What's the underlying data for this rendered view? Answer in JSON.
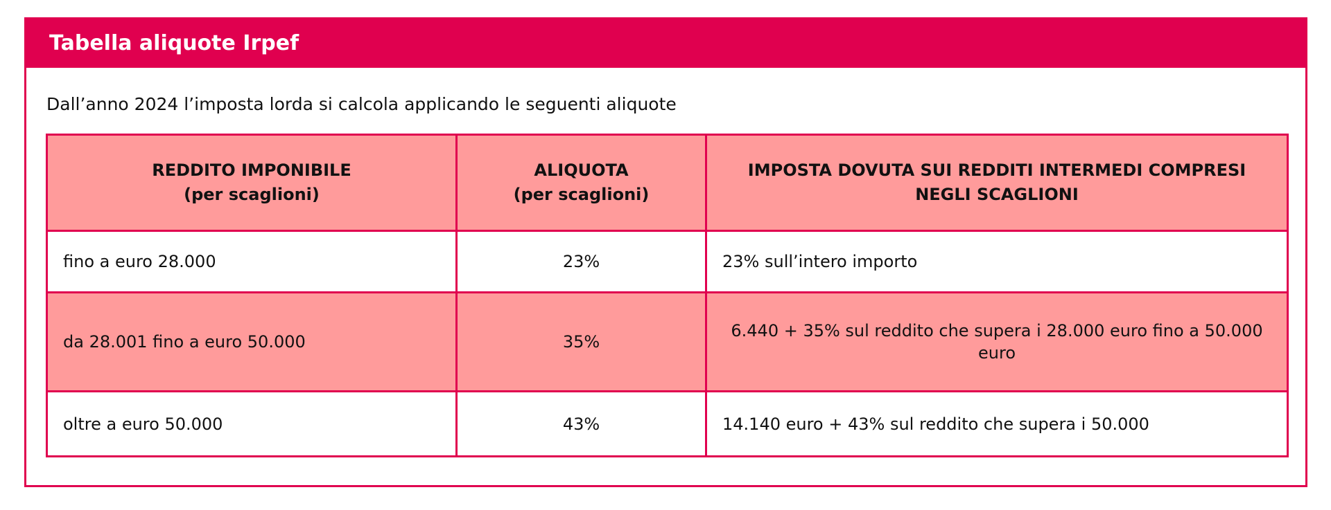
{
  "header": {
    "title": "Tabella aliquote Irpef"
  },
  "intro": "Dall’anno 2024 l’imposta lorda si calcola applicando le seguenti aliquote",
  "table": {
    "columns": [
      {
        "line1": "REDDITO IMPONIBILE",
        "line2": "(per scaglioni)"
      },
      {
        "line1": "ALIQUOTA",
        "line2": "(per scaglioni)"
      },
      {
        "line1": "IMPOSTA DOVUTA SUI REDDITI INTERMEDI COMPRESI NEGLI SCAGLIONI",
        "line2": ""
      }
    ],
    "rows": [
      {
        "income": "fino a euro 28.000",
        "rate": "23%",
        "tax": "23% sull’intero importo"
      },
      {
        "income": "da 28.001 fino a euro 50.000",
        "rate": "35%",
        "tax": "6.440 + 35% sul reddito che supera i 28.000 euro fino a 50.000 euro"
      },
      {
        "income": "oltre a euro 50.000",
        "rate": "43%",
        "tax": "14.140 euro + 43% sul reddito che supera i 50.000"
      }
    ]
  },
  "colors": {
    "accent": "#e0004f",
    "row_highlight": "#ff9b9b",
    "background": "#ffffff"
  }
}
